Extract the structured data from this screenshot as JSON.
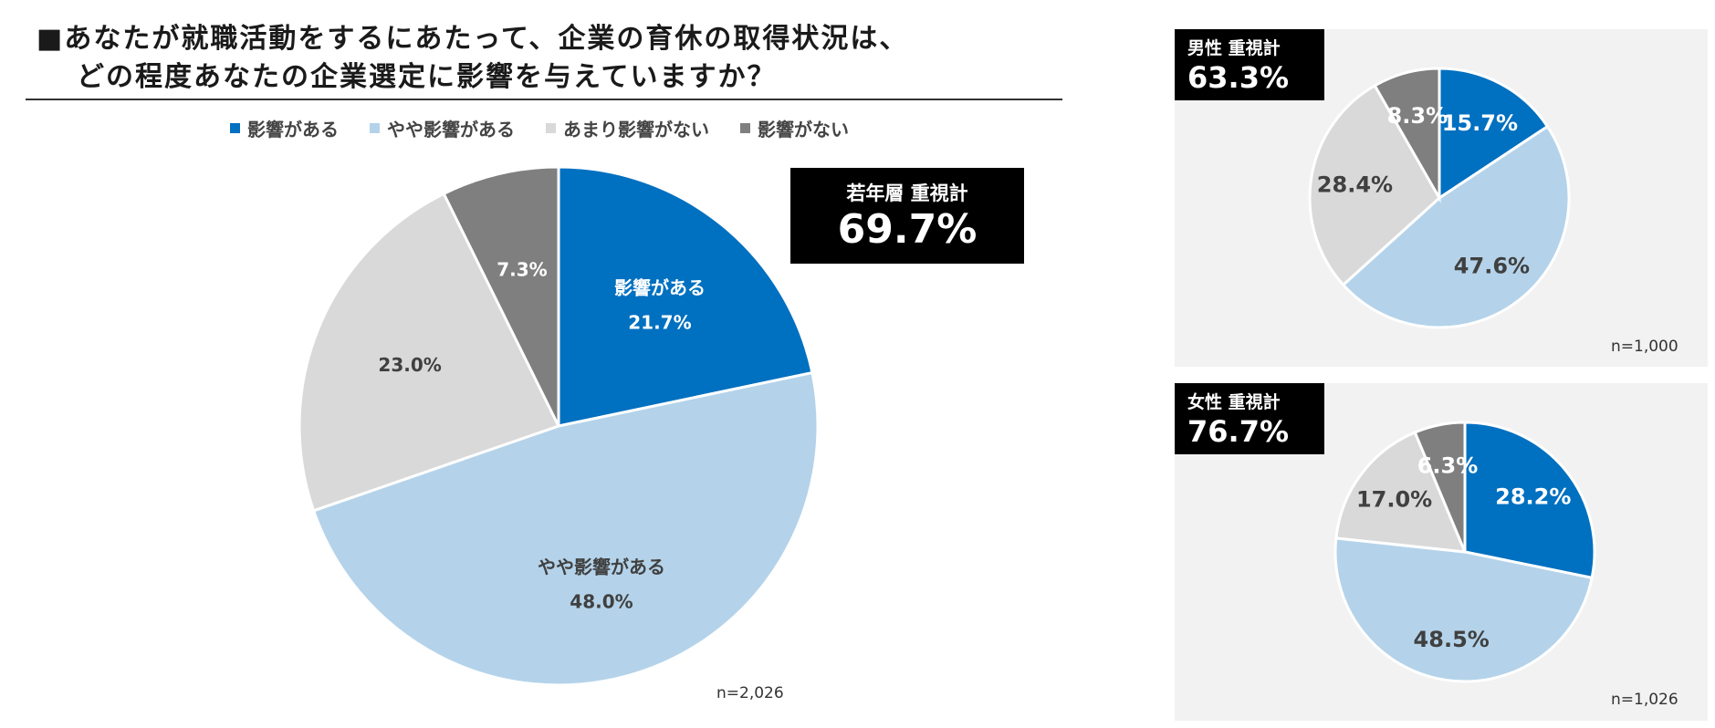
{
  "question": {
    "line1": "■あなたが就職活動をするにあたって、企業の育休の取得状況は、",
    "line2": "どの程度あなたの企業選定に影響を与えていますか？"
  },
  "legend": [
    {
      "label": "影響がある",
      "color": "#0070c0"
    },
    {
      "label": "やや影響がある",
      "color": "#b4d3ea"
    },
    {
      "label": "あまり影響がない",
      "color": "#d9d9d9"
    },
    {
      "label": "影響がない",
      "color": "#7f7f7f"
    }
  ],
  "chart_data": [
    {
      "type": "pie",
      "name": "若年層",
      "categories": [
        "影響がある",
        "やや影響がある",
        "あまり影響がない",
        "影響がない"
      ],
      "values": [
        21.7,
        48.0,
        23.0,
        7.3
      ],
      "value_labels": [
        "21.7%",
        "48.0%",
        "23.0%",
        "7.3%"
      ],
      "slice_labels": [
        "影響がある",
        "やや影響がある",
        "",
        ""
      ],
      "total_label": "若年層 重視計",
      "total_value": "69.7%",
      "n": "n=2,026"
    },
    {
      "type": "pie",
      "name": "男性",
      "categories": [
        "影響がある",
        "やや影響がある",
        "あまり影響がない",
        "影響がない"
      ],
      "values": [
        15.7,
        47.6,
        28.4,
        8.3
      ],
      "value_labels": [
        "15.7%",
        "47.6%",
        "28.4%",
        "8.3%"
      ],
      "slice_labels": [
        "",
        "",
        "",
        ""
      ],
      "total_label": "男性 重視計",
      "total_value": "63.3%",
      "n": "n=1,000"
    },
    {
      "type": "pie",
      "name": "女性",
      "categories": [
        "影響がある",
        "やや影響がある",
        "あまり影響がない",
        "影響がない"
      ],
      "values": [
        28.2,
        48.5,
        17.0,
        6.3
      ],
      "value_labels": [
        "28.2%",
        "48.5%",
        "17.0%",
        "6.3%"
      ],
      "slice_labels": [
        "",
        "",
        "",
        ""
      ],
      "total_label": "女性 重視計",
      "total_value": "76.7%",
      "n": "n=1,026"
    }
  ],
  "label_colors": [
    "#ffffff",
    "#404040",
    "#404040",
    "#ffffff"
  ]
}
